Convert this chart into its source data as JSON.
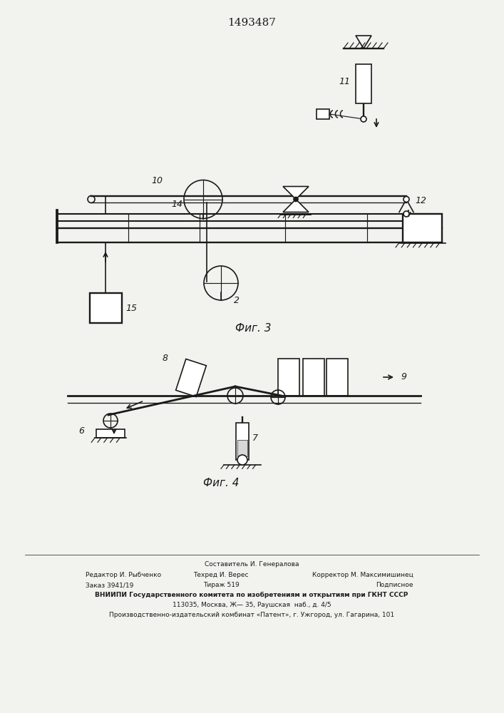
{
  "title": "1493487",
  "fig3_label": "Фиг. 3",
  "fig4_label": "Фиг. 4",
  "footer_lines": [
    "Составитель И. Генералова",
    "Редактор И. Рыбченко",
    "Техред И. Верес",
    "Корректор М. Максимишинец",
    "Заказ 3941/19",
    "Тираж 519",
    "Подписное",
    "ВНИИПИ Государственного комитета по изобретениям и открытиям при ГКНТ СССР",
    "113035, Москва, Ж— 35, Раушская  наб., д. 4/5",
    "Производственно-издательский комбинат «Патент», г. Ужгород, ул. Гагарина, 101"
  ],
  "bg_color": "#f2f2ee",
  "line_color": "#1a1a1a",
  "line_width": 1.2
}
